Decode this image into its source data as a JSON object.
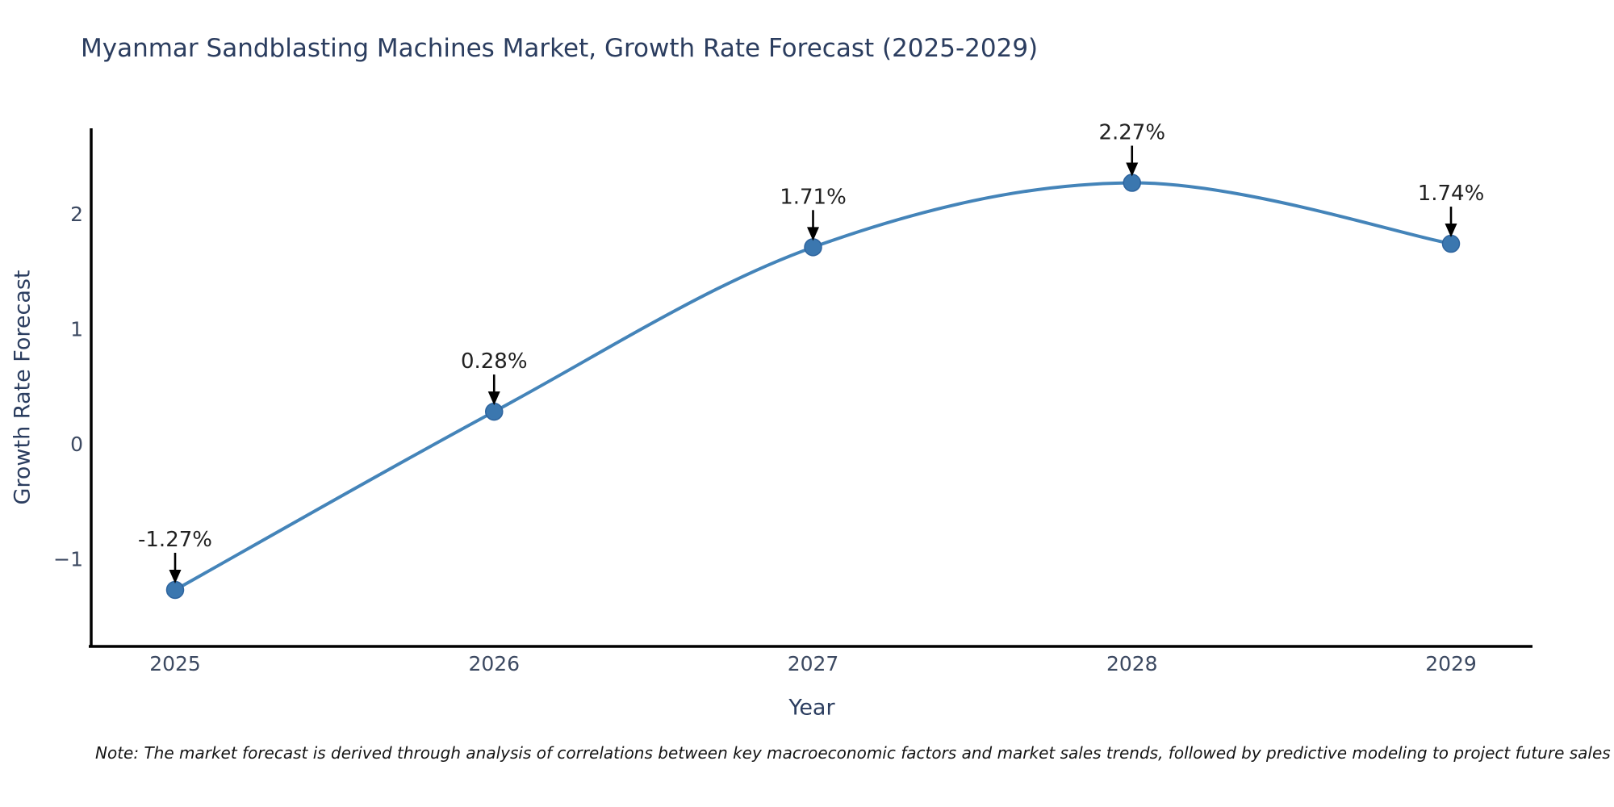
{
  "title": "Myanmar Sandblasting Machines Market, Growth Rate Forecast (2025-2029)",
  "note": "Note: The market forecast is derived through analysis of correlations between key macroeconomic factors and market sales trends, followed by predictive modeling to project future sales",
  "chart_data": {
    "type": "line",
    "title": "Myanmar Sandblasting Machines Market, Growth Rate Forecast (2025-2029)",
    "xlabel": "Year",
    "ylabel": "Growth Rate Forecast",
    "categories": [
      "2025",
      "2026",
      "2027",
      "2028",
      "2029"
    ],
    "values": [
      -1.27,
      0.28,
      1.71,
      2.27,
      1.74
    ],
    "point_labels": [
      "-1.27%",
      "0.28%",
      "1.71%",
      "2.27%",
      "1.74%"
    ],
    "yticks": [
      -1,
      0,
      1,
      2
    ],
    "ytick_labels": [
      "−1",
      "0",
      "1",
      "2"
    ],
    "ylim": [
      -1.76,
      2.74
    ],
    "grid": false,
    "legend": "none",
    "smooth": true,
    "line_color": "#4484b9",
    "marker_color": "#3b77af",
    "marker_edge_color": "#2e649e",
    "annotation_text_color": "#212121",
    "annotation_arrow_color": "#000000",
    "axis_color": "#000000",
    "tick_label_color": "#3c4961"
  }
}
